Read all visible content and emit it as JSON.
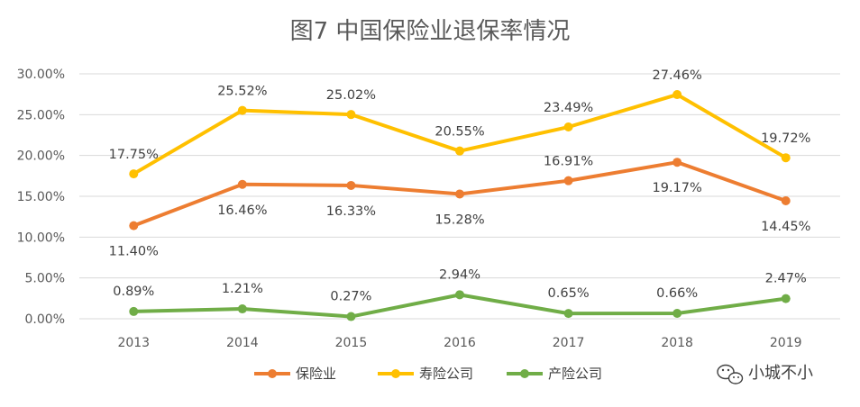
{
  "chart_data": {
    "type": "line",
    "title": "图7  中国保险业退保率情况",
    "categories": [
      "2013",
      "2014",
      "2015",
      "2016",
      "2017",
      "2018",
      "2019"
    ],
    "ylim": [
      0,
      30
    ],
    "y_ticks": [
      "0.00%",
      "5.00%",
      "10.00%",
      "15.00%",
      "20.00%",
      "25.00%",
      "30.00%"
    ],
    "grid": "horizontal",
    "legend_position": "bottom",
    "series": [
      {
        "name": "保险业",
        "color": "#ED7D31",
        "values": [
          11.4,
          16.46,
          16.33,
          15.28,
          16.91,
          19.17,
          14.45
        ],
        "labels": [
          "11.40%",
          "16.46%",
          "16.33%",
          "15.28%",
          "16.91%",
          "19.17%",
          "14.45%"
        ]
      },
      {
        "name": "寿险公司",
        "color": "#FFC000",
        "values": [
          17.75,
          25.52,
          25.02,
          20.55,
          23.49,
          27.46,
          19.72
        ],
        "labels": [
          "17.75%",
          "25.52%",
          "25.02%",
          "20.55%",
          "23.49%",
          "27.46%",
          "19.72%"
        ]
      },
      {
        "name": "产险公司",
        "color": "#70AD47",
        "values": [
          0.89,
          1.21,
          0.27,
          2.94,
          0.65,
          0.66,
          2.47
        ],
        "labels": [
          "0.89%",
          "1.21%",
          "0.27%",
          "2.94%",
          "0.65%",
          "0.66%",
          "2.47%"
        ]
      }
    ]
  },
  "watermark": {
    "text": "小城不小",
    "icon": "wechat-icon"
  }
}
